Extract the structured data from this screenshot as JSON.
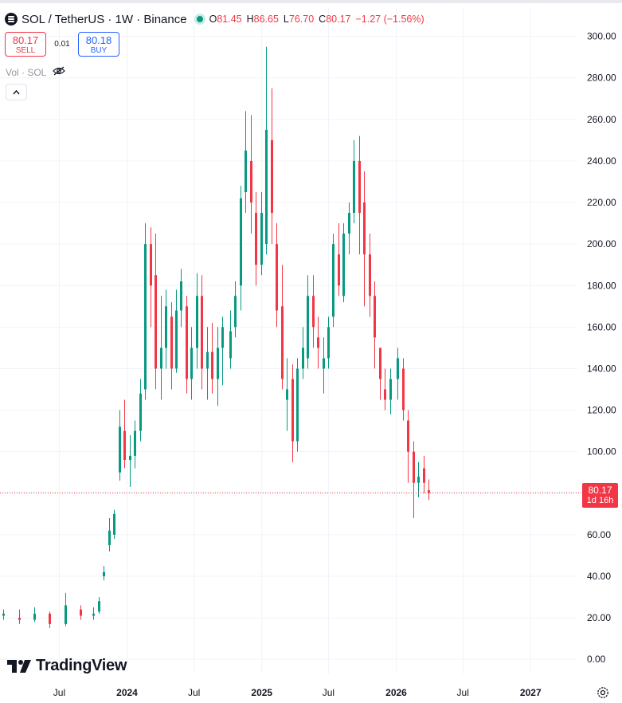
{
  "header": {
    "title": "SOL / TetherUS · 1W · Binance",
    "symbol_icon": "solana-logo-icon",
    "market_status_color": "#089981",
    "ohlc": [
      {
        "key": "O",
        "value": "81.45"
      },
      {
        "key": "H",
        "value": "86.65"
      },
      {
        "key": "L",
        "value": "76.70"
      },
      {
        "key": "C",
        "value": "80.17"
      }
    ],
    "change": "−1.27 (−1.56%)"
  },
  "trade": {
    "sell_price": "80.17",
    "sell_label": "SELL",
    "spread": "0.01",
    "buy_price": "80.18",
    "buy_label": "BUY"
  },
  "volume_legend": {
    "label": "Vol · SOL",
    "icon": "eye-crossed-icon"
  },
  "collapse_icon": "chevron-up-icon",
  "price_tag": {
    "price": "80.17",
    "countdown": "1d 16h"
  },
  "branding": {
    "logo_icon": "tradingview-logo-icon",
    "name": "TradingView"
  },
  "settings_icon": "gear-icon",
  "colors": {
    "up": "#089981",
    "down": "#f23645",
    "grid": "#f0f3fa"
  },
  "chart_data": {
    "type": "candlestick",
    "title": "SOL / TetherUS · 1W · Binance",
    "interval": "1W",
    "y_axis": {
      "ticks": [
        "300.00",
        "280.00",
        "260.00",
        "240.00",
        "220.00",
        "200.00",
        "180.00",
        "160.00",
        "140.00",
        "120.00",
        "100.00",
        "80.00",
        "60.00",
        "40.00",
        "20.00",
        "0.00"
      ],
      "range": [
        -3,
        306
      ]
    },
    "x_axis": {
      "ticks": [
        {
          "label": "Jul",
          "date": "2023-07-01",
          "year": false
        },
        {
          "label": "2024",
          "date": "2024-01-01",
          "year": true
        },
        {
          "label": "Jul",
          "date": "2024-07-01",
          "year": false
        },
        {
          "label": "2025",
          "date": "2025-01-01",
          "year": true
        },
        {
          "label": "Jul",
          "date": "2025-07-01",
          "year": false
        },
        {
          "label": "2026",
          "date": "2026-01-01",
          "year": true
        },
        {
          "label": "Jul",
          "date": "2026-07-01",
          "year": false
        },
        {
          "label": "2027",
          "date": "2027-01-01",
          "year": true
        }
      ],
      "range": [
        "2023-01-21",
        "2027-05-08"
      ]
    },
    "last_price": 80.17,
    "grid": true,
    "candles": [
      [
        "2023-01-30",
        21,
        24,
        19,
        22
      ],
      [
        "2023-03-13",
        20,
        24,
        17,
        19
      ],
      [
        "2023-04-24",
        19,
        25,
        18,
        22
      ],
      [
        "2023-06-05",
        22,
        23,
        15,
        17
      ],
      [
        "2023-07-17",
        17,
        32,
        16,
        26
      ],
      [
        "2023-08-28",
        24,
        26,
        19,
        21
      ],
      [
        "2023-10-02",
        21,
        25,
        19,
        22
      ],
      [
        "2023-10-16",
        23,
        30,
        22,
        28
      ],
      [
        "2023-10-30",
        40,
        45,
        38,
        42
      ],
      [
        "2023-11-13",
        55,
        68,
        52,
        62
      ],
      [
        "2023-11-27",
        60,
        72,
        58,
        70
      ],
      [
        "2023-12-11",
        90,
        120,
        86,
        112
      ],
      [
        "2023-12-25",
        110,
        125,
        92,
        96
      ],
      [
        "2024-01-08",
        96,
        108,
        83,
        98
      ],
      [
        "2024-01-22",
        98,
        115,
        92,
        110
      ],
      [
        "2024-02-05",
        110,
        135,
        105,
        128
      ],
      [
        "2024-02-19",
        130,
        210,
        125,
        200
      ],
      [
        "2024-03-04",
        200,
        208,
        160,
        180
      ],
      [
        "2024-03-18",
        185,
        205,
        130,
        140
      ],
      [
        "2024-04-01",
        140,
        175,
        125,
        150
      ],
      [
        "2024-04-15",
        150,
        178,
        140,
        170
      ],
      [
        "2024-04-29",
        165,
        172,
        130,
        140
      ],
      [
        "2024-05-13",
        140,
        178,
        138,
        168
      ],
      [
        "2024-05-27",
        168,
        188,
        160,
        182
      ],
      [
        "2024-06-10",
        170,
        175,
        128,
        135
      ],
      [
        "2024-06-24",
        135,
        160,
        125,
        150
      ],
      [
        "2024-07-08",
        150,
        186,
        140,
        175
      ],
      [
        "2024-07-22",
        175,
        185,
        130,
        140
      ],
      [
        "2024-08-05",
        140,
        160,
        125,
        148
      ],
      [
        "2024-08-19",
        148,
        162,
        128,
        135
      ],
      [
        "2024-09-02",
        135,
        160,
        122,
        150
      ],
      [
        "2024-09-16",
        150,
        165,
        132,
        160
      ],
      [
        "2024-10-07",
        145,
        168,
        140,
        158
      ],
      [
        "2024-10-21",
        160,
        182,
        155,
        175
      ],
      [
        "2024-11-04",
        180,
        228,
        168,
        222
      ],
      [
        "2024-11-18",
        225,
        264,
        215,
        245
      ],
      [
        "2024-12-02",
        240,
        262,
        205,
        220
      ],
      [
        "2024-12-16",
        215,
        225,
        180,
        190
      ],
      [
        "2024-12-30",
        190,
        225,
        185,
        215
      ],
      [
        "2025-01-13",
        200,
        295,
        195,
        255
      ],
      [
        "2025-01-27",
        250,
        275,
        200,
        215
      ],
      [
        "2025-02-10",
        200,
        210,
        160,
        168
      ],
      [
        "2025-02-24",
        170,
        190,
        130,
        135
      ],
      [
        "2025-03-10",
        125,
        145,
        110,
        130
      ],
      [
        "2025-03-24",
        135,
        142,
        95,
        105
      ],
      [
        "2025-04-07",
        105,
        145,
        100,
        140
      ],
      [
        "2025-04-21",
        140,
        160,
        135,
        150
      ],
      [
        "2025-05-05",
        145,
        185,
        140,
        175
      ],
      [
        "2025-05-19",
        175,
        185,
        150,
        160
      ],
      [
        "2025-06-02",
        155,
        165,
        140,
        150
      ],
      [
        "2025-06-16",
        140,
        155,
        128,
        145
      ],
      [
        "2025-06-30",
        145,
        165,
        140,
        160
      ],
      [
        "2025-07-14",
        165,
        205,
        160,
        200
      ],
      [
        "2025-07-28",
        195,
        210,
        175,
        180
      ],
      [
        "2025-08-11",
        175,
        210,
        172,
        205
      ],
      [
        "2025-08-25",
        205,
        220,
        195,
        215
      ],
      [
        "2025-09-08",
        215,
        250,
        210,
        240
      ],
      [
        "2025-09-22",
        240,
        252,
        195,
        215
      ],
      [
        "2025-10-06",
        220,
        235,
        170,
        195
      ],
      [
        "2025-10-20",
        195,
        205,
        165,
        175
      ],
      [
        "2025-11-03",
        175,
        182,
        140,
        155
      ],
      [
        "2025-11-17",
        150,
        150,
        125,
        135
      ],
      [
        "2025-12-01",
        130,
        140,
        120,
        125
      ],
      [
        "2025-12-15",
        125,
        140,
        118,
        135
      ],
      [
        "2026-01-05",
        135,
        150,
        125,
        145
      ],
      [
        "2026-01-19",
        140,
        145,
        115,
        120
      ],
      [
        "2026-02-02",
        115,
        120,
        85,
        100
      ],
      [
        "2026-02-16",
        100,
        105,
        68,
        85
      ],
      [
        "2026-03-02",
        85,
        95,
        78,
        88
      ],
      [
        "2026-03-16",
        92,
        98,
        80,
        85
      ],
      [
        "2026-03-30",
        81.45,
        86.65,
        76.7,
        80.17
      ]
    ]
  }
}
